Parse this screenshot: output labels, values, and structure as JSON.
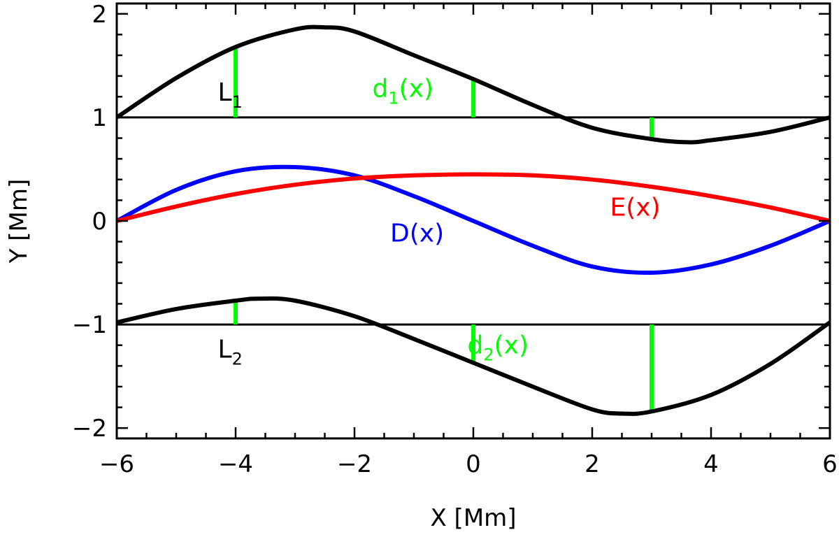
{
  "chart_data": {
    "type": "line",
    "title": "",
    "xlabel": "X [Mm]",
    "ylabel": "Y [Mm]",
    "xlim": [
      -6,
      6
    ],
    "ylim": [
      -2.1,
      2.1
    ],
    "x_ticks": [
      {
        "value": -6,
        "label": "−6"
      },
      {
        "value": -4,
        "label": "−4"
      },
      {
        "value": -2,
        "label": "−2"
      },
      {
        "value": 0,
        "label": "0"
      },
      {
        "value": 2,
        "label": "2"
      },
      {
        "value": 4,
        "label": "4"
      },
      {
        "value": 6,
        "label": "6"
      }
    ],
    "y_ticks": [
      {
        "value": -2,
        "label": "−2"
      },
      {
        "value": -1,
        "label": "−1"
      },
      {
        "value": 0,
        "label": "0"
      },
      {
        "value": 1,
        "label": "1"
      },
      {
        "value": 2,
        "label": "2"
      }
    ],
    "x_minor_step": 0.5,
    "y_minor_step": 0.2,
    "grid": false,
    "reference_lines": [
      {
        "name": "L1",
        "y": 1,
        "color": "#000000"
      },
      {
        "name": "L2",
        "y": -1,
        "color": "#000000"
      }
    ],
    "series": [
      {
        "key": "upper-boundary",
        "color": "#000000",
        "x": [
          -6,
          -5,
          -4,
          -3,
          -2.5,
          -2,
          -1,
          0,
          1,
          2,
          3,
          3.6,
          4,
          5,
          6
        ],
        "y": [
          1.0,
          1.38,
          1.68,
          1.85,
          1.87,
          1.83,
          1.6,
          1.37,
          1.12,
          0.9,
          0.79,
          0.76,
          0.78,
          0.86,
          1.0
        ]
      },
      {
        "key": "lower-boundary",
        "color": "#000000",
        "x": [
          -6,
          -5,
          -4,
          -3.6,
          -3,
          -2,
          -1,
          0,
          1,
          2,
          2.5,
          3,
          4,
          5,
          6
        ],
        "y": [
          -0.98,
          -0.85,
          -0.77,
          -0.75,
          -0.77,
          -0.92,
          -1.14,
          -1.37,
          -1.6,
          -1.82,
          -1.86,
          -1.84,
          -1.68,
          -1.38,
          -0.98
        ]
      },
      {
        "key": "D",
        "color": "#0000ff",
        "x": [
          -6,
          -5,
          -4,
          -3,
          -2,
          -1,
          0,
          1,
          2,
          3,
          4,
          5,
          6
        ],
        "y": [
          0.0,
          0.3,
          0.48,
          0.52,
          0.44,
          0.24,
          0.0,
          -0.24,
          -0.44,
          -0.5,
          -0.42,
          -0.24,
          0.0
        ]
      },
      {
        "key": "E",
        "color": "#ff0000",
        "x": [
          -6,
          -5,
          -4,
          -3,
          -2,
          -1,
          0,
          1,
          2,
          3,
          4,
          5,
          6
        ],
        "y": [
          0.0,
          0.14,
          0.26,
          0.35,
          0.41,
          0.44,
          0.45,
          0.44,
          0.4,
          0.33,
          0.24,
          0.13,
          0.0
        ]
      }
    ],
    "markers": [
      {
        "x": -4,
        "y0": 1,
        "y1": 1.68,
        "color": "#00ff00"
      },
      {
        "x": 0,
        "y0": 1,
        "y1": 1.37,
        "color": "#00ff00"
      },
      {
        "x": 3,
        "y0": 1,
        "y1": 0.79,
        "color": "#00ff00"
      },
      {
        "x": -4,
        "y0": -1,
        "y1": -0.77,
        "color": "#00ff00"
      },
      {
        "x": 0,
        "y0": -1,
        "y1": -1.37,
        "color": "#00ff00"
      },
      {
        "x": 3,
        "y0": -1,
        "y1": -1.84,
        "color": "#00ff00"
      }
    ],
    "annotations": [
      {
        "key": "L1",
        "main": "L",
        "sub": "1",
        "suffix": "",
        "x": -4.3,
        "y": 1.16,
        "color": "#000000"
      },
      {
        "key": "d1",
        "main": "d",
        "sub": "1",
        "suffix": "(x)",
        "x": -1.7,
        "y": 1.2,
        "color": "#00ff00"
      },
      {
        "key": "D",
        "main": "D(x)",
        "sub": "",
        "suffix": "",
        "x": -1.4,
        "y": -0.2,
        "color": "#0000ff"
      },
      {
        "key": "E",
        "main": "E(x)",
        "sub": "",
        "suffix": "",
        "x": 2.3,
        "y": 0.05,
        "color": "#ff0000"
      },
      {
        "key": "L2",
        "main": "L",
        "sub": "2",
        "suffix": "",
        "x": -4.3,
        "y": -1.32,
        "color": "#000000"
      },
      {
        "key": "d2",
        "main": "d",
        "sub": "2",
        "suffix": "(x)",
        "x": -0.1,
        "y": -1.28,
        "color": "#00ff00"
      }
    ]
  }
}
